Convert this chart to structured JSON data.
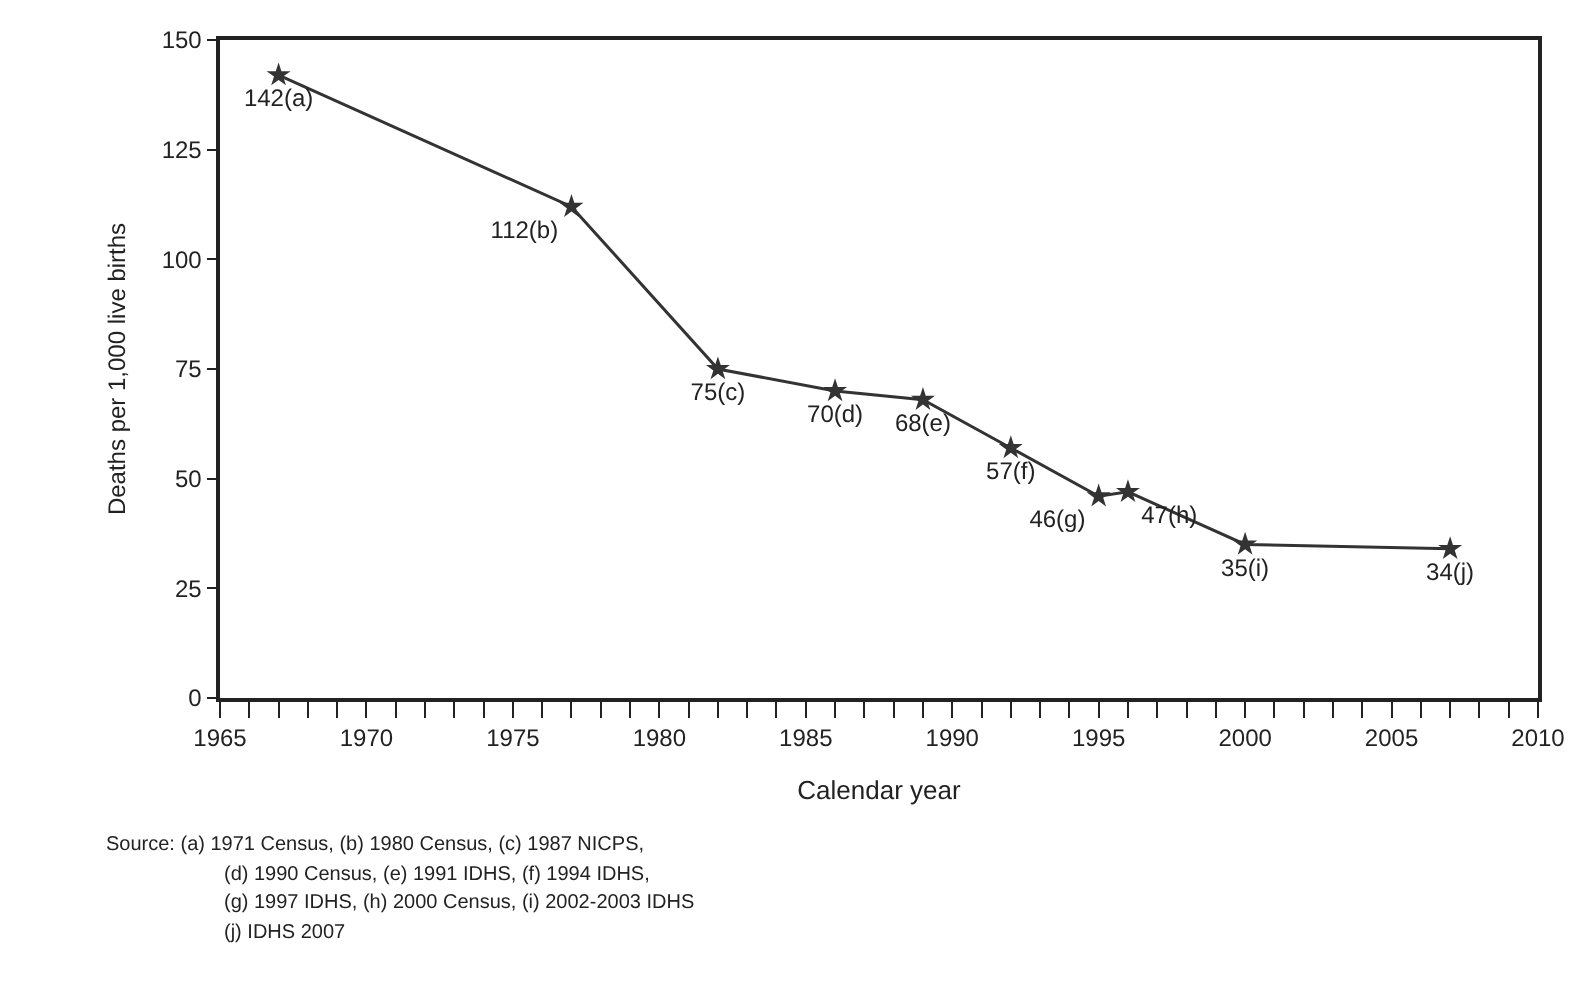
{
  "chart_data": {
    "type": "line",
    "x": [
      1967,
      1977,
      1982,
      1986,
      1989,
      1992,
      1995,
      1996,
      2000,
      2007
    ],
    "series": [
      {
        "color": "#333333",
        "values": [
          142,
          112,
          75,
          70,
          68,
          57,
          46,
          47,
          35,
          34
        ],
        "value_labels": [
          "142(a)",
          "112(b)",
          "75(c)",
          "70(d)",
          "68(e)",
          "57(f)",
          "46(g)",
          "47(h)",
          "35(i)",
          "34(j)"
        ]
      }
    ],
    "xlabel": "Calendar year",
    "ylabel": "Deaths per 1,000 live births",
    "xlim": [
      1965,
      2010
    ],
    "xticks": [
      1965,
      1970,
      1975,
      1980,
      1985,
      1990,
      1995,
      2000,
      2005,
      2010
    ],
    "ylim": [
      0,
      150
    ],
    "yticks": [
      0,
      25,
      50,
      75,
      100,
      125,
      150
    ],
    "marker": "star",
    "line_style": "solid",
    "annotations": [
      "Source: (a) 1971 Census, (b) 1980 Census, (c) 1987 NICPS,",
      "(d) 1990 Census, (e) 1991 IDHS, (f) 1994 IDHS,",
      "(g) 1997 IDHS, (h) 2000 Census, (i) 2002-2003 IDHS",
      "(j) IDHS 2007"
    ]
  }
}
